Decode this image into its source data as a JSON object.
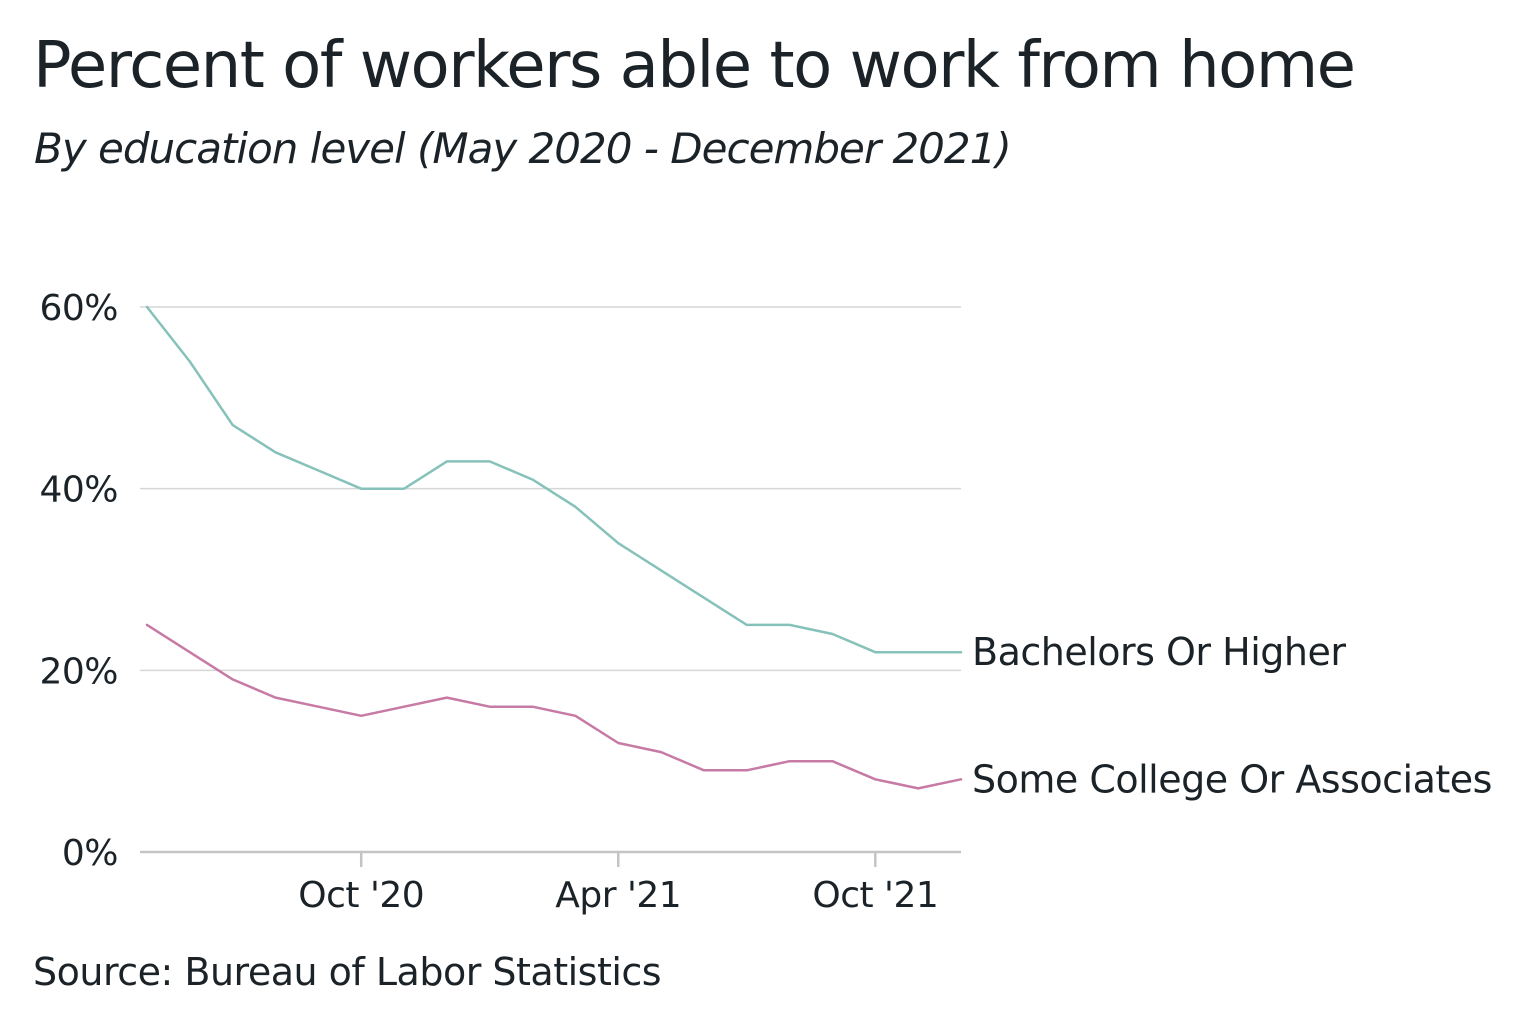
{
  "title": "Percent of workers able to work from home",
  "subtitle": "By education level (May 2020 - December 2021)",
  "source": "Source: Bureau of Labor Statistics",
  "chart_data": {
    "type": "line",
    "x": [
      "2020-05",
      "2020-06",
      "2020-07",
      "2020-08",
      "2020-09",
      "2020-10",
      "2020-11",
      "2020-12",
      "2021-01",
      "2021-02",
      "2021-03",
      "2021-04",
      "2021-05",
      "2021-06",
      "2021-07",
      "2021-08",
      "2021-09",
      "2021-10",
      "2021-11",
      "2021-12"
    ],
    "series": [
      {
        "name": "Bachelors Or Higher",
        "color": "#86c2ba",
        "values": [
          60,
          54,
          47,
          44,
          42,
          40,
          40,
          43,
          43,
          41,
          38,
          34,
          31,
          28,
          25,
          25,
          24,
          22,
          22,
          22
        ]
      },
      {
        "name": "Some College Or Associates",
        "color": "#c67aa5",
        "values": [
          25,
          22,
          19,
          17,
          16,
          15,
          16,
          17,
          16,
          16,
          15,
          12,
          11,
          9,
          9,
          10,
          10,
          8,
          7,
          8
        ]
      }
    ],
    "yticks": [
      0,
      20,
      40,
      60
    ],
    "ytick_labels": [
      "0%",
      "20%",
      "40%",
      "60%"
    ],
    "xticks": [
      "2020-10",
      "2021-04",
      "2021-10"
    ],
    "xtick_labels": [
      "Oct '20",
      "Apr '21",
      "Oct '21"
    ],
    "ylim": [
      0,
      60
    ],
    "xlabel": "",
    "ylabel": "",
    "grid": "horizontal",
    "legend": "direct labels at line ends"
  }
}
